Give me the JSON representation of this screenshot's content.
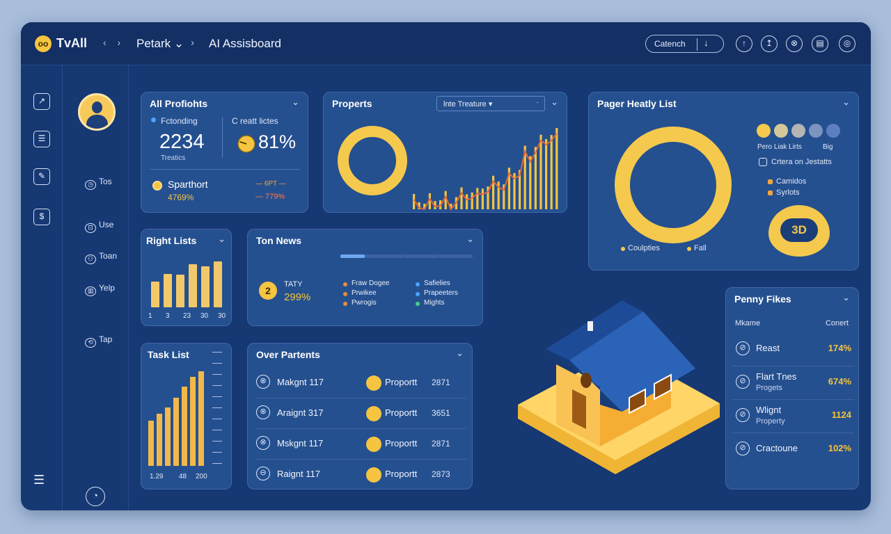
{
  "app": {
    "logo_glyph": "oo",
    "name": "TvAll",
    "nav": "‹ ›",
    "breadcrumb_1": "Petark ⌄",
    "breadcrumb_sep": "›",
    "breadcrumb_2": "AI Assisboard"
  },
  "topbar": {
    "search_label": "Catench",
    "search_icon": "↓",
    "icons": [
      "↑",
      "↥",
      "⊗",
      "▤",
      "◎"
    ]
  },
  "rail": {
    "icons": [
      "↗",
      "☰",
      "✎",
      "$"
    ],
    "menu_icon": "☰"
  },
  "sidebar": {
    "items": [
      {
        "glyph": "◷",
        "label": "Tos"
      },
      {
        "glyph": "⊡",
        "label": "Use"
      },
      {
        "glyph": "⚇",
        "label": "Toan"
      },
      {
        "glyph": "▥",
        "label": "Yelp"
      },
      {
        "glyph": "⟲",
        "label": "Tap"
      }
    ],
    "bottom_icon": "◔"
  },
  "profits": {
    "title": "All Profiohts",
    "left_label": "Fctonding",
    "left_value": "2234",
    "left_sub": "Treatics",
    "right_label": "C reatt lictes",
    "right_value": "81%",
    "right_gauge_fraction": 0.8,
    "row_name": "Sparthort",
    "row_value": "4769%",
    "right_tag_top": "— 6PT —",
    "right_tag_bottom": "— 779%"
  },
  "properts": {
    "title": "Properts",
    "dropdown_value": "lnte Treature ▾",
    "dropdown_caret": "⌄"
  },
  "right_lists": {
    "title": "Right Lists",
    "tick_labels": [
      "1",
      "3",
      "23",
      "30",
      "30"
    ],
    "bars_pct": [
      45,
      58,
      57,
      75,
      72,
      80
    ]
  },
  "ton_news": {
    "title": "Ton News",
    "badge_num": "2",
    "stat_top": "TATY",
    "stat_value": "299%",
    "legend_a": [
      "Fraw Dogee",
      "Prwikee",
      "Pwrogis"
    ],
    "legend_b": [
      "Safielies",
      "Prapeeters",
      "Mights"
    ]
  },
  "task_list": {
    "title": "Task List",
    "tick_labels": [
      "1.29",
      "48",
      "200"
    ],
    "bars_pct": [
      48,
      55,
      62,
      72,
      84,
      94,
      100
    ]
  },
  "over_parents": {
    "title": "Over Partents",
    "rows": [
      {
        "icon": "⊗",
        "name": "Makgnt 117",
        "prop": "Proportt",
        "num": "2871"
      },
      {
        "icon": "⊗",
        "name": "Araignt 317",
        "prop": "Proportt",
        "num": "3651"
      },
      {
        "icon": "⊗",
        "name": "Mskgnt 117",
        "prop": "Proportt",
        "num": "2871"
      },
      {
        "icon": "⊖",
        "name": "Raignt 117",
        "prop": "Proportt",
        "num": "2873"
      }
    ]
  },
  "pager": {
    "title": "Pager Heatly List",
    "legend_text_a": "Pero Liak Lirts",
    "legend_text_b": "Big",
    "criteria": "Crtera on Jestatts",
    "legend_items": [
      "Camidos",
      "Syrlots"
    ],
    "bottom_legend": [
      "Coulpties",
      "Fall"
    ],
    "badge_text": "3D",
    "dot_colors": [
      "#f5c94e",
      "#d4c899",
      "#b5b5b4",
      "#7d93c0",
      "#5d7fc1"
    ]
  },
  "penny": {
    "title": "Penny Fikes",
    "col_1": "Mkame",
    "col_2": "Conert",
    "rows": [
      {
        "icon": "⊘",
        "name": "Reast",
        "sub": "",
        "value": "174%"
      },
      {
        "icon": "⊘",
        "name": "Flart Tnes",
        "sub": "Progets",
        "value": "674%"
      },
      {
        "icon": "⊘",
        "name": "Wlignt",
        "sub": "Property",
        "value": "1124"
      },
      {
        "icon": "⊘",
        "name": "Cractoune",
        "sub": "",
        "value": "102%"
      }
    ]
  },
  "colors": {
    "accent": "#f5c440",
    "panel": "#25508f",
    "bg": "#163873",
    "orange": "#e98c3a",
    "red": "#d9532b"
  }
}
